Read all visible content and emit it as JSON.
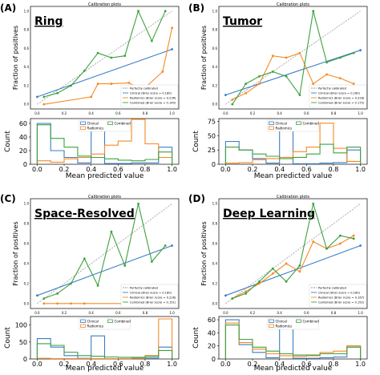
{
  "legend_labels": {
    "calibrated": "Perfectly calibrated",
    "calib_legend": [
      "Clinical (Brier score = 0.180)",
      "Radiomics (Brier score = 0.236)",
      "Combined (Brier score = 0.149)"
    ],
    "hist_legend": [
      "Clinical",
      "Radiomics",
      "Combined"
    ]
  },
  "colors": {
    "clinical": "#3a7fc4",
    "radiomics": "#f58a25",
    "combined": "#3fa13f",
    "diagonal": "#9a9a9a"
  },
  "chart_data": [
    {
      "panel": "(A)",
      "title": "Ring",
      "header": "Calibration plots",
      "type": "line",
      "ylabel": "Fraction of positives",
      "calib_ticks_x": [
        "0.0",
        "0.2",
        "0.4",
        "0.6",
        "0.8",
        "1.0"
      ],
      "calib_ticks_y": [
        "0.0",
        "0.2",
        "0.4",
        "0.6",
        "0.8",
        "1.0"
      ],
      "xlim": [
        -0.05,
        1.05
      ],
      "ylim": [
        -0.05,
        1.05
      ],
      "calib_legend": [
        "Perfectly calibrated",
        "Clinical (Brier score = 0.180)",
        "Radiomics (Brier score = 0.236)",
        "Combined (Brier score = 0.149)"
      ],
      "series": [
        {
          "name": "Clinical (Brier score = 0.180)",
          "x": [
            0.0,
            1.0
          ],
          "y": [
            0.08,
            0.59
          ]
        },
        {
          "name": "Radiomics (Brier score = 0.236)",
          "x": [
            0.05,
            0.4,
            0.45,
            0.55,
            0.68,
            0.78,
            0.93,
            1.0
          ],
          "y": [
            0.0,
            0.08,
            0.22,
            0.22,
            0.23,
            0.15,
            0.35,
            0.82
          ]
        },
        {
          "name": "Combined (Brier score = 0.149)",
          "x": [
            0.05,
            0.15,
            0.25,
            0.35,
            0.45,
            0.55,
            0.65,
            0.75,
            0.85,
            0.95
          ],
          "y": [
            0.08,
            0.12,
            0.2,
            0.36,
            0.55,
            0.5,
            0.52,
            1.0,
            0.68,
            1.0
          ]
        }
      ],
      "hist": {
        "ylabel": "Count",
        "xlabel": "Mean predicted value",
        "yticks": [
          "0",
          "20",
          "40",
          "60"
        ],
        "ymax": 67,
        "xticks": [
          "0.0",
          "0.2",
          "0.4",
          "0.6",
          "0.8",
          "1.0"
        ],
        "legend": [
          "Clinical",
          "Radiomics",
          "Combined"
        ],
        "bins": [
          0.0,
          0.1,
          0.2,
          0.3,
          0.4,
          0.5,
          0.6,
          0.7,
          0.8,
          0.9,
          1.0
        ],
        "series": [
          {
            "name": "Clinical",
            "values": [
              60,
              20,
              10,
              2,
              60,
              1,
              1,
              2,
              2,
              25
            ]
          },
          {
            "name": "Radiomics",
            "values": [
              5,
              3,
              8,
              10,
              15,
              28,
              34,
              66,
              30,
              10
            ]
          },
          {
            "name": "Combined",
            "values": [
              58,
              38,
              25,
              12,
              10,
              8,
              6,
              5,
              7,
              18
            ]
          }
        ]
      }
    },
    {
      "panel": "(B)",
      "title": "Tumor",
      "header": "Calibration plots",
      "type": "line",
      "ylabel": "Fraction of positives",
      "calib_ticks_x": [
        "0.0",
        "0.2",
        "0.4",
        "0.6",
        "0.8",
        "1.0"
      ],
      "calib_ticks_y": [
        "0.0",
        "0.2",
        "0.4",
        "0.6",
        "0.8",
        "1.0"
      ],
      "xlim": [
        -0.05,
        1.05
      ],
      "ylim": [
        -0.05,
        1.05
      ],
      "calib_legend": [
        "Perfectly calibrated",
        "Clinical (Brier score = 0.180)",
        "Radiomics (Brier score = 0.228)",
        "Combined (Brier score = 0.175)"
      ],
      "series": [
        {
          "name": "Clinical (Brier score = 0.180)",
          "x": [
            0.0,
            1.0
          ],
          "y": [
            0.1,
            0.58
          ]
        },
        {
          "name": "Radiomics (Brier score = 0.228)",
          "x": [
            0.05,
            0.15,
            0.25,
            0.35,
            0.45,
            0.55,
            0.65,
            0.75,
            0.85,
            0.95
          ],
          "y": [
            0.05,
            0.12,
            0.22,
            0.52,
            0.5,
            0.55,
            0.22,
            0.32,
            0.28,
            0.22
          ]
        },
        {
          "name": "Combined (Brier score = 0.175)",
          "x": [
            0.05,
            0.15,
            0.25,
            0.35,
            0.45,
            0.55,
            0.65,
            0.75,
            0.85,
            0.95
          ],
          "y": [
            0.0,
            0.22,
            0.3,
            0.35,
            0.3,
            0.1,
            1.0,
            0.45,
            0.5,
            0.55
          ]
        }
      ],
      "hist": {
        "ylabel": "Count",
        "xlabel": "Mean predicted value",
        "yticks": [
          "0",
          "25",
          "50",
          "75"
        ],
        "ymax": 80,
        "xticks": [
          "0.0",
          "0.2",
          "0.4",
          "0.6",
          "0.8",
          "1.0"
        ],
        "legend": [
          "Clinical",
          "Radiomics",
          "Combined"
        ],
        "bins": [
          0.0,
          0.1,
          0.2,
          0.3,
          0.4,
          0.5,
          0.6,
          0.7,
          0.8,
          0.9,
          1.0
        ],
        "series": [
          {
            "name": "Clinical",
            "values": [
              40,
              25,
              10,
              2,
              70,
              1,
              1,
              2,
              3,
              25
            ]
          },
          {
            "name": "Radiomics",
            "values": [
              2,
              3,
              8,
              10,
              12,
              22,
              30,
              72,
              28,
              5
            ]
          },
          {
            "name": "Combined",
            "values": [
              30,
              25,
              18,
              14,
              10,
              12,
              18,
              35,
              20,
              30
            ]
          }
        ]
      }
    },
    {
      "panel": "(C)",
      "title": "Space-Resolved",
      "header": "Calibration plots",
      "type": "line",
      "ylabel": "Fraction of positives",
      "calib_ticks_x": [
        "0.0",
        "0.2",
        "0.4",
        "0.6",
        "0.8",
        "1.0"
      ],
      "calib_ticks_y": [
        "0.0",
        "0.2",
        "0.4",
        "0.6",
        "0.8",
        "1.0"
      ],
      "xlim": [
        -0.05,
        1.05
      ],
      "ylim": [
        -0.05,
        1.05
      ],
      "calib_legend": [
        "Perfectly calibrated",
        "Clinical (Brier score = 0.180)",
        "Radiomics (Brier score = 0.226)",
        "Combined (Brier score = 0.151)"
      ],
      "series": [
        {
          "name": "Clinical (Brier score = 0.180)",
          "x": [
            0.0,
            1.0
          ],
          "y": [
            0.08,
            0.58
          ]
        },
        {
          "name": "Radiomics (Brier score = 0.226)",
          "x": [
            0.05,
            0.15,
            0.25,
            0.35,
            0.95
          ],
          "y": [
            0.0,
            0.0,
            0.0,
            0.0,
            0.0
          ]
        },
        {
          "name": "Combined (Brier score = 0.151)",
          "x": [
            0.05,
            0.15,
            0.25,
            0.35,
            0.45,
            0.55,
            0.65,
            0.75,
            0.85,
            0.95
          ],
          "y": [
            0.05,
            0.1,
            0.2,
            0.45,
            0.18,
            0.72,
            0.38,
            1.0,
            0.42,
            0.58
          ]
        }
      ],
      "hist": {
        "ylabel": "Count",
        "xlabel": "Mean predicted value",
        "yticks": [
          "0",
          "50",
          "100"
        ],
        "ymax": 125,
        "xticks": [
          "0.0",
          "0.2",
          "0.4",
          "0.6",
          "0.8",
          "1.0"
        ],
        "legend": [
          "Clinical",
          "Radiomics",
          "Combined"
        ],
        "bins": [
          0.0,
          0.1,
          0.2,
          0.3,
          0.4,
          0.5,
          0.6,
          0.7,
          0.8,
          0.9,
          1.0
        ],
        "series": [
          {
            "name": "Clinical",
            "values": [
              60,
              35,
              10,
              2,
              68,
              1,
              1,
              2,
              3,
              35
            ]
          },
          {
            "name": "Radiomics",
            "values": [
              2,
              1,
              1,
              1,
              1,
              1,
              1,
              2,
              10,
              118
            ]
          },
          {
            "name": "Combined",
            "values": [
              45,
              40,
              20,
              10,
              8,
              6,
              5,
              5,
              8,
              25
            ]
          }
        ]
      }
    },
    {
      "panel": "(D)",
      "title": "Deep Learning",
      "header": "Calibration plots",
      "type": "line",
      "ylabel": "Fraction of positives",
      "calib_ticks_x": [
        "0.0",
        "0.2",
        "0.4",
        "0.6",
        "0.8",
        "1.0"
      ],
      "calib_ticks_y": [
        "0.0",
        "0.2",
        "0.4",
        "0.6",
        "0.8",
        "1.0"
      ],
      "xlim": [
        -0.05,
        1.05
      ],
      "ylim": [
        -0.05,
        1.05
      ],
      "calib_legend": [
        "Perfectly calibrated",
        "Clinical (Brier score = 0.180)",
        "Radiomics (Brier score = 0.167)",
        "Combined (Brier score = 0.152)"
      ],
      "series": [
        {
          "name": "Clinical (Brier score = 0.180)",
          "x": [
            0.0,
            1.0
          ],
          "y": [
            0.08,
            0.58
          ]
        },
        {
          "name": "Radiomics (Brier score = 0.167)",
          "x": [
            0.05,
            0.15,
            0.25,
            0.35,
            0.45,
            0.55,
            0.65,
            0.75,
            0.85,
            0.95
          ],
          "y": [
            0.05,
            0.12,
            0.2,
            0.3,
            0.4,
            0.32,
            0.62,
            0.55,
            0.6,
            0.68
          ]
        },
        {
          "name": "Combined (Brier score = 0.152)",
          "x": [
            0.05,
            0.15,
            0.25,
            0.35,
            0.45,
            0.55,
            0.65,
            0.75,
            0.85,
            0.95
          ],
          "y": [
            0.05,
            0.1,
            0.22,
            0.35,
            0.22,
            0.38,
            1.0,
            0.55,
            0.68,
            0.65
          ]
        }
      ],
      "hist": {
        "ylabel": "Count",
        "xlabel": "Mean predicted value",
        "yticks": [
          "0",
          "20",
          "40",
          "60"
        ],
        "ymax": 65,
        "xticks": [
          "0.0",
          "0.2",
          "0.4",
          "0.6",
          "0.8",
          "1.0"
        ],
        "legend": [
          "Clinical",
          "Radiomics",
          "Combined"
        ],
        "bins": [
          0.0,
          0.1,
          0.2,
          0.3,
          0.4,
          0.5,
          0.6,
          0.7,
          0.8,
          0.9,
          1.0
        ],
        "series": [
          {
            "name": "Clinical",
            "values": [
              60,
              22,
              10,
              2,
              60,
              1,
              1,
              2,
              3,
              20
            ]
          },
          {
            "name": "Radiomics",
            "values": [
              55,
              25,
              15,
              8,
              5,
              4,
              5,
              10,
              12,
              20
            ]
          },
          {
            "name": "Combined",
            "values": [
              52,
              30,
              18,
              12,
              8,
              6,
              6,
              8,
              8,
              18
            ]
          }
        ]
      }
    }
  ]
}
